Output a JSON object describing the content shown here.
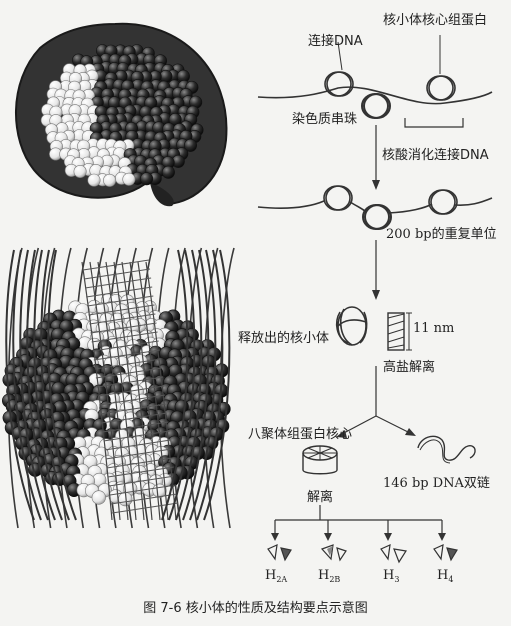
{
  "labels": {
    "linker_dna": "连接DNA",
    "core_histone": "核小体核心组蛋白",
    "beads_on_string": "染色质串珠",
    "nuclease_digest": "核酸消化连接DNA",
    "repeat_unit": "200 bp的重复单位",
    "released_nucleosome": "释放出的核小体",
    "dimension": "11 nm",
    "high_salt": "高盐解离",
    "octamer_core": "八聚体组蛋白核心",
    "dna_duplex": "146 bp DNA双链",
    "dissociate": "解离"
  },
  "histones": [
    {
      "base": "H",
      "sub": "2A"
    },
    {
      "base": "H",
      "sub": "2B"
    },
    {
      "base": "H",
      "sub": "3"
    },
    {
      "base": "H",
      "sub": "4"
    }
  ],
  "caption": "图 7-6   核小体的性质及结构要点示意图",
  "colors": {
    "dark_bead": "#262626",
    "light_bead": "#eeeeee",
    "line": "#333333",
    "background": "#f4f4f2"
  }
}
